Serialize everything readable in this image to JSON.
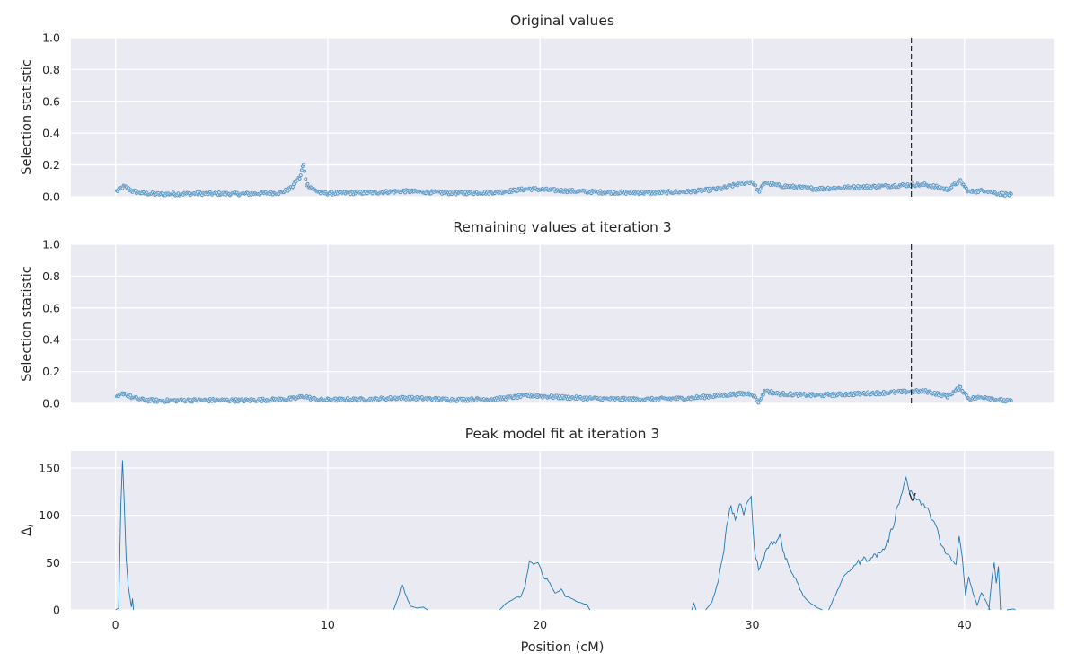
{
  "colors": {
    "axes_background": "#eaeaf2",
    "grid": "#ffffff",
    "series": "#1f77b4",
    "marker_line": "#000000",
    "text": "#262626"
  },
  "chart_data": [
    {
      "type": "scatter",
      "title": "Original values",
      "xlabel": "",
      "ylabel": "Selection statistic",
      "xlim": [
        -2.1,
        44.2
      ],
      "ylim": [
        0,
        1.0
      ],
      "yticks": [
        0.0,
        0.2,
        0.4,
        0.6,
        0.8,
        1.0
      ],
      "ytick_labels": [
        "0.0",
        "0.2",
        "0.4",
        "0.6",
        "0.8",
        "1.0"
      ],
      "xticks": [
        0,
        10,
        20,
        30,
        40
      ],
      "show_xtick_labels": false,
      "grid": true,
      "marker": "open-circle",
      "vline": {
        "x": 37.5,
        "style": "dashed"
      },
      "x_range": [
        0.05,
        42.2
      ],
      "profile": [
        [
          0.0,
          0.03
        ],
        [
          0.4,
          0.065
        ],
        [
          0.8,
          0.035
        ],
        [
          1.3,
          0.022
        ],
        [
          2.0,
          0.016
        ],
        [
          4.0,
          0.02
        ],
        [
          6.0,
          0.018
        ],
        [
          7.8,
          0.025
        ],
        [
          8.3,
          0.055
        ],
        [
          8.5,
          0.1
        ],
        [
          8.7,
          0.12
        ],
        [
          8.85,
          0.21
        ],
        [
          9.0,
          0.08
        ],
        [
          9.4,
          0.04
        ],
        [
          9.7,
          0.022
        ],
        [
          12.0,
          0.025
        ],
        [
          13.5,
          0.035
        ],
        [
          16.0,
          0.022
        ],
        [
          18.0,
          0.028
        ],
        [
          19.5,
          0.05
        ],
        [
          21.0,
          0.038
        ],
        [
          23.0,
          0.028
        ],
        [
          25.0,
          0.025
        ],
        [
          27.0,
          0.032
        ],
        [
          28.5,
          0.05
        ],
        [
          29.5,
          0.085
        ],
        [
          30.0,
          0.095
        ],
        [
          30.3,
          0.03
        ],
        [
          30.6,
          0.09
        ],
        [
          31.2,
          0.07
        ],
        [
          33.0,
          0.05
        ],
        [
          35.0,
          0.06
        ],
        [
          36.8,
          0.07
        ],
        [
          37.5,
          0.075
        ],
        [
          38.2,
          0.075
        ],
        [
          39.2,
          0.045
        ],
        [
          39.8,
          0.1
        ],
        [
          40.2,
          0.03
        ],
        [
          41.0,
          0.04
        ],
        [
          41.6,
          0.02
        ],
        [
          42.2,
          0.012
        ]
      ]
    },
    {
      "type": "scatter",
      "title": "Remaining values at iteration 3",
      "xlabel": "",
      "ylabel": "Selection statistic",
      "xlim": [
        -2.1,
        44.2
      ],
      "ylim": [
        0,
        1.0
      ],
      "yticks": [
        0.0,
        0.2,
        0.4,
        0.6,
        0.8,
        1.0
      ],
      "ytick_labels": [
        "0.0",
        "0.2",
        "0.4",
        "0.6",
        "0.8",
        "1.0"
      ],
      "xticks": [
        0,
        10,
        20,
        30,
        40
      ],
      "show_xtick_labels": false,
      "grid": true,
      "marker": "open-circle",
      "vline": {
        "x": 37.5,
        "style": "dashed"
      },
      "x_range": [
        0.05,
        42.2
      ],
      "profile": [
        [
          0.0,
          0.03
        ],
        [
          0.4,
          0.065
        ],
        [
          0.8,
          0.035
        ],
        [
          1.3,
          0.022
        ],
        [
          2.0,
          0.016
        ],
        [
          4.0,
          0.02
        ],
        [
          6.0,
          0.018
        ],
        [
          7.8,
          0.025
        ],
        [
          8.4,
          0.03
        ],
        [
          8.9,
          0.045
        ],
        [
          9.3,
          0.028
        ],
        [
          9.7,
          0.022
        ],
        [
          12.0,
          0.025
        ],
        [
          13.5,
          0.035
        ],
        [
          16.0,
          0.022
        ],
        [
          18.0,
          0.028
        ],
        [
          19.5,
          0.05
        ],
        [
          21.0,
          0.038
        ],
        [
          23.0,
          0.028
        ],
        [
          25.0,
          0.025
        ],
        [
          27.0,
          0.032
        ],
        [
          28.5,
          0.05
        ],
        [
          29.5,
          0.06
        ],
        [
          30.0,
          0.06
        ],
        [
          30.3,
          0.005
        ],
        [
          30.6,
          0.08
        ],
        [
          31.2,
          0.06
        ],
        [
          33.0,
          0.05
        ],
        [
          35.0,
          0.06
        ],
        [
          36.8,
          0.07
        ],
        [
          37.5,
          0.075
        ],
        [
          38.2,
          0.075
        ],
        [
          39.2,
          0.045
        ],
        [
          39.8,
          0.1
        ],
        [
          40.2,
          0.03
        ],
        [
          41.0,
          0.04
        ],
        [
          41.6,
          0.02
        ],
        [
          42.2,
          0.012
        ]
      ]
    },
    {
      "type": "line",
      "title": "Peak model fit at iteration 3",
      "xlabel": "Position (cM)",
      "ylabel": "Δ_i",
      "xlim": [
        -2.1,
        44.2
      ],
      "ylim": [
        0,
        168
      ],
      "yticks": [
        0,
        50,
        100,
        150
      ],
      "ytick_labels": [
        "0",
        "50",
        "100",
        "150"
      ],
      "xticks": [
        0,
        10,
        20,
        30,
        40
      ],
      "xtick_labels": [
        "0",
        "10",
        "20",
        "30",
        "40"
      ],
      "grid": true,
      "annotation": {
        "text": "v",
        "x": 37.55,
        "y": 120
      },
      "segments": [
        [
          [
            0.0,
            0
          ],
          [
            0.15,
            2
          ],
          [
            0.25,
            110
          ],
          [
            0.33,
            158
          ],
          [
            0.4,
            120
          ],
          [
            0.5,
            55
          ],
          [
            0.6,
            25
          ],
          [
            0.7,
            10
          ],
          [
            0.75,
            3
          ],
          [
            0.8,
            12
          ],
          [
            0.85,
            0
          ]
        ],
        [
          [
            13.1,
            0
          ],
          [
            13.3,
            12
          ],
          [
            13.5,
            27
          ],
          [
            13.7,
            15
          ],
          [
            13.9,
            4
          ],
          [
            14.2,
            2
          ],
          [
            14.5,
            3
          ],
          [
            14.7,
            0
          ]
        ],
        [
          [
            18.1,
            0
          ],
          [
            18.4,
            7
          ],
          [
            18.8,
            12
          ],
          [
            19.1,
            14
          ],
          [
            19.3,
            25
          ],
          [
            19.5,
            52
          ],
          [
            19.7,
            48
          ],
          [
            19.9,
            50
          ],
          [
            20.1,
            38
          ],
          [
            20.4,
            30
          ],
          [
            20.7,
            18
          ],
          [
            21.0,
            22
          ],
          [
            21.2,
            14
          ],
          [
            21.5,
            12
          ],
          [
            21.8,
            8
          ],
          [
            22.2,
            6
          ],
          [
            22.35,
            0
          ]
        ],
        [
          [
            27.15,
            0
          ],
          [
            27.25,
            7
          ],
          [
            27.35,
            0
          ]
        ],
        [
          [
            27.8,
            0
          ],
          [
            28.1,
            8
          ],
          [
            28.4,
            30
          ],
          [
            28.6,
            55
          ],
          [
            28.8,
            90
          ],
          [
            29.0,
            110
          ],
          [
            29.2,
            95
          ],
          [
            29.4,
            112
          ],
          [
            29.6,
            100
          ],
          [
            29.8,
            115
          ],
          [
            29.95,
            120
          ],
          [
            30.1,
            65
          ],
          [
            30.3,
            42
          ],
          [
            30.6,
            60
          ],
          [
            30.9,
            72
          ],
          [
            31.1,
            70
          ],
          [
            31.3,
            80
          ],
          [
            31.5,
            60
          ],
          [
            31.8,
            42
          ],
          [
            32.1,
            30
          ],
          [
            32.4,
            15
          ],
          [
            32.7,
            8
          ],
          [
            33.0,
            3
          ],
          [
            33.3,
            0
          ]
        ],
        [
          [
            33.6,
            0
          ],
          [
            33.9,
            15
          ],
          [
            34.2,
            30
          ],
          [
            34.5,
            40
          ],
          [
            34.8,
            47
          ],
          [
            35.2,
            53
          ],
          [
            35.6,
            55
          ],
          [
            36.0,
            60
          ],
          [
            36.3,
            68
          ],
          [
            36.6,
            85
          ],
          [
            36.85,
            110
          ],
          [
            37.0,
            120
          ],
          [
            37.15,
            133
          ],
          [
            37.25,
            140
          ],
          [
            37.35,
            130
          ],
          [
            37.6,
            120
          ],
          [
            37.9,
            115
          ],
          [
            38.2,
            108
          ],
          [
            38.5,
            95
          ],
          [
            38.8,
            78
          ],
          [
            39.1,
            60
          ],
          [
            39.4,
            52
          ],
          [
            39.6,
            48
          ],
          [
            39.75,
            78
          ],
          [
            39.9,
            55
          ],
          [
            40.05,
            15
          ],
          [
            40.2,
            35
          ],
          [
            40.4,
            18
          ],
          [
            40.6,
            5
          ],
          [
            40.8,
            18
          ],
          [
            41.0,
            10
          ],
          [
            41.2,
            0
          ]
        ],
        [
          [
            41.15,
            0
          ],
          [
            41.3,
            35
          ],
          [
            41.4,
            50
          ],
          [
            41.5,
            28
          ],
          [
            41.6,
            46
          ],
          [
            41.7,
            0
          ]
        ],
        [
          [
            42.0,
            0
          ],
          [
            42.3,
            1
          ],
          [
            42.4,
            0
          ]
        ]
      ]
    }
  ]
}
